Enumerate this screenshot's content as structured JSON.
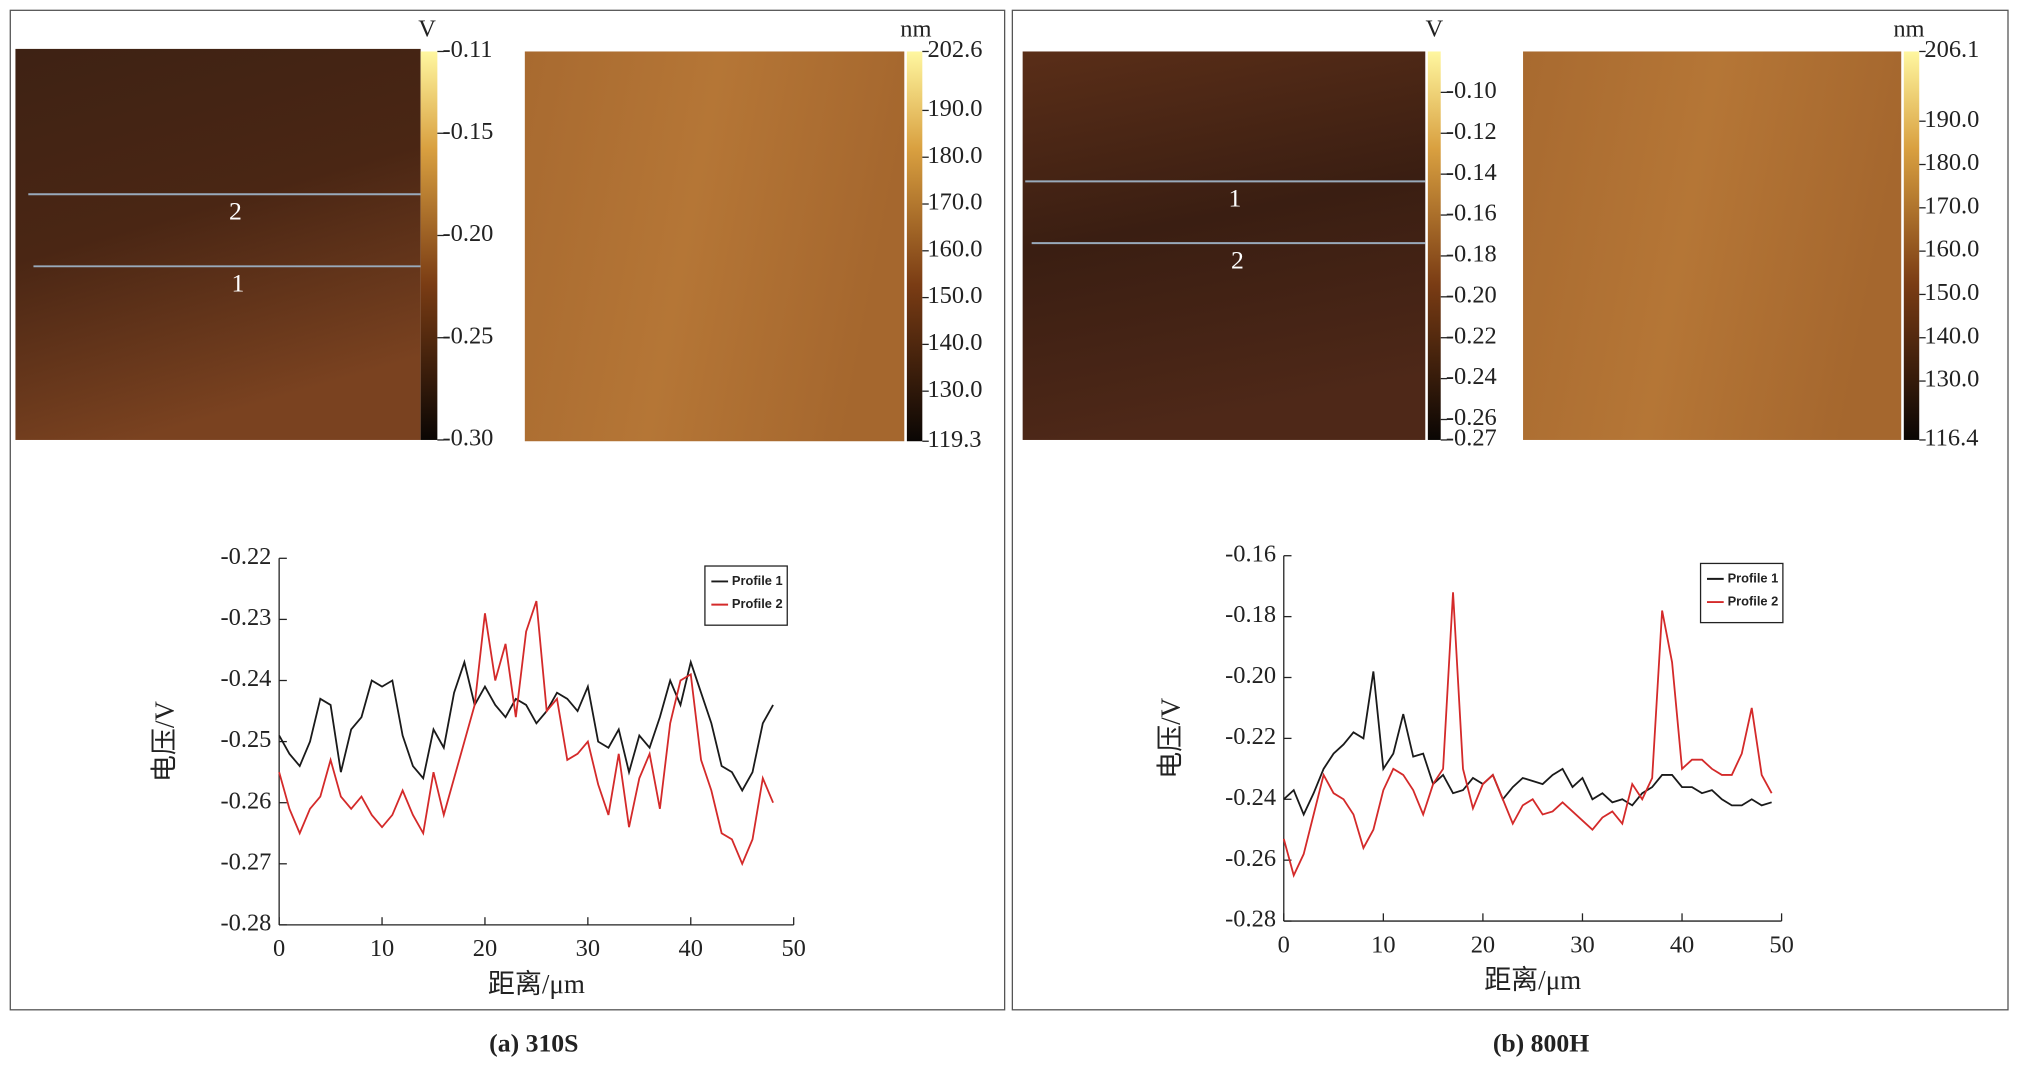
{
  "panels": [
    {
      "caption": "(a) 310S",
      "profile_labels": [
        "2",
        "1"
      ]
    },
    {
      "caption": "(b) 800H",
      "profile_labels": [
        "1",
        "2"
      ]
    }
  ],
  "chart_data": [
    {
      "type": "colorbar",
      "label": "V",
      "ylim": [
        -0.3,
        -0.11
      ],
      "yticks": [
        -0.11,
        -0.15,
        {
          "value": -0.2,
          "label": "-0.20"
        },
        -0.25,
        {
          "value": -0.3,
          "label": "-0.30"
        }
      ]
    },
    {
      "type": "colorbar",
      "label": "nm",
      "ylim": [
        119.3,
        202.6
      ],
      "yticks": [
        202.6,
        {
          "value": 190,
          "label": "190.0"
        },
        {
          "value": 180,
          "label": "180.0"
        },
        {
          "value": 170,
          "label": "170.0"
        },
        {
          "value": 160,
          "label": "160.0"
        },
        {
          "value": 150,
          "label": "150.0"
        },
        {
          "value": 140,
          "label": "140.0"
        },
        {
          "value": 130,
          "label": "130.0"
        },
        119.3
      ]
    },
    {
      "type": "line",
      "xlabel": "距离/μm",
      "ylabel": "电压/V",
      "legend": "upper right",
      "xlim": [
        0,
        50
      ],
      "ylim": [
        -0.28,
        -0.22
      ],
      "xticks": [
        0,
        10,
        20,
        30,
        40,
        50
      ],
      "yticks": [
        -0.22,
        -0.23,
        -0.24,
        -0.25,
        -0.26,
        -0.27,
        -0.28
      ],
      "x": [
        0,
        1,
        2,
        3,
        4,
        5,
        6,
        7,
        8,
        9,
        10,
        11,
        12,
        13,
        14,
        15,
        16,
        17,
        18,
        19,
        20,
        21,
        22,
        23,
        24,
        25,
        26,
        27,
        28,
        29,
        30,
        31,
        32,
        33,
        34,
        35,
        36,
        37,
        38,
        39,
        40,
        41,
        42,
        43,
        44,
        45,
        46,
        47,
        48
      ],
      "series": [
        {
          "name": "Profile 1",
          "color": "#1a1a1a",
          "values": [
            -0.249,
            -0.252,
            -0.254,
            -0.25,
            -0.243,
            -0.244,
            -0.255,
            -0.248,
            -0.246,
            -0.24,
            -0.241,
            -0.24,
            -0.249,
            -0.254,
            -0.256,
            -0.248,
            -0.251,
            -0.242,
            -0.237,
            -0.244,
            -0.241,
            -0.244,
            -0.246,
            -0.243,
            -0.244,
            -0.247,
            -0.245,
            -0.242,
            -0.243,
            -0.245,
            -0.241,
            -0.25,
            -0.251,
            -0.248,
            -0.255,
            -0.249,
            -0.251,
            -0.246,
            -0.24,
            -0.244,
            -0.237,
            -0.242,
            -0.247,
            -0.254,
            -0.255,
            -0.258,
            -0.255,
            -0.247,
            -0.244
          ]
        },
        {
          "name": "Profile 2",
          "color": "#d42a2a",
          "values": [
            -0.255,
            -0.261,
            -0.265,
            -0.261,
            -0.259,
            -0.253,
            -0.259,
            -0.261,
            -0.259,
            -0.262,
            -0.264,
            -0.262,
            -0.258,
            -0.262,
            -0.265,
            -0.255,
            -0.262,
            -0.256,
            -0.25,
            -0.244,
            -0.229,
            -0.24,
            -0.234,
            -0.246,
            -0.232,
            -0.227,
            -0.245,
            -0.243,
            -0.253,
            -0.252,
            -0.25,
            -0.257,
            -0.262,
            -0.252,
            -0.264,
            -0.256,
            -0.252,
            -0.261,
            -0.247,
            -0.24,
            -0.239,
            -0.253,
            -0.258,
            -0.265,
            -0.266,
            -0.27,
            -0.266,
            -0.256,
            -0.26
          ]
        }
      ]
    },
    {
      "type": "colorbar",
      "label": "V",
      "ylim": [
        -0.27,
        -0.08
      ],
      "yticks": [
        {
          "value": -0.1,
          "label": "-0.10"
        },
        -0.12,
        -0.14,
        -0.16,
        -0.18,
        {
          "value": -0.2,
          "label": "-0.20"
        },
        -0.22,
        -0.24,
        -0.26,
        -0.27
      ]
    },
    {
      "type": "colorbar",
      "label": "nm",
      "ylim": [
        116.4,
        206.1
      ],
      "yticks": [
        206.1,
        {
          "value": 190,
          "label": "190.0"
        },
        {
          "value": 180,
          "label": "180.0"
        },
        {
          "value": 170,
          "label": "170.0"
        },
        {
          "value": 160,
          "label": "160.0"
        },
        {
          "value": 150,
          "label": "150.0"
        },
        {
          "value": 140,
          "label": "140.0"
        },
        {
          "value": 130,
          "label": "130.0"
        },
        116.4
      ]
    },
    {
      "type": "line",
      "xlabel": "距离/μm",
      "ylabel": "电压/V",
      "legend": "upper right",
      "xlim": [
        0,
        50
      ],
      "ylim": [
        -0.28,
        -0.16
      ],
      "xticks": [
        0,
        10,
        20,
        30,
        40,
        50
      ],
      "yticks": [
        -0.16,
        -0.18,
        {
          "value": -0.2,
          "label": "-0.20"
        },
        -0.22,
        -0.24,
        -0.26,
        -0.28
      ],
      "x": [
        0,
        1,
        2,
        3,
        4,
        5,
        6,
        7,
        8,
        9,
        10,
        11,
        12,
        13,
        14,
        15,
        16,
        17,
        18,
        19,
        20,
        21,
        22,
        23,
        24,
        25,
        26,
        27,
        28,
        29,
        30,
        31,
        32,
        33,
        34,
        35,
        36,
        37,
        38,
        39,
        40,
        41,
        42,
        43,
        44,
        45,
        46,
        47,
        48,
        49
      ],
      "series": [
        {
          "name": "Profile 1",
          "color": "#1a1a1a",
          "values": [
            -0.24,
            -0.237,
            -0.245,
            -0.238,
            -0.23,
            -0.225,
            -0.222,
            -0.218,
            -0.22,
            -0.198,
            -0.23,
            -0.225,
            -0.212,
            -0.226,
            -0.225,
            -0.235,
            -0.232,
            -0.238,
            -0.237,
            -0.233,
            -0.235,
            -0.232,
            -0.24,
            -0.236,
            -0.233,
            -0.234,
            -0.235,
            -0.232,
            -0.23,
            -0.236,
            -0.233,
            -0.24,
            -0.238,
            -0.241,
            -0.24,
            -0.242,
            -0.238,
            -0.236,
            -0.232,
            -0.232,
            -0.236,
            -0.236,
            -0.238,
            -0.237,
            -0.24,
            -0.242,
            -0.242,
            -0.24,
            -0.242,
            -0.241
          ]
        },
        {
          "name": "Profile 2",
          "color": "#d42a2a",
          "values": [
            -0.253,
            -0.265,
            -0.258,
            -0.245,
            -0.232,
            -0.238,
            -0.24,
            -0.245,
            -0.256,
            -0.25,
            -0.237,
            -0.23,
            -0.232,
            -0.237,
            -0.245,
            -0.235,
            -0.23,
            -0.172,
            -0.23,
            -0.243,
            -0.235,
            -0.232,
            -0.24,
            -0.248,
            -0.242,
            -0.24,
            -0.245,
            -0.244,
            -0.241,
            -0.244,
            -0.247,
            -0.25,
            -0.246,
            -0.244,
            -0.248,
            -0.235,
            -0.24,
            -0.233,
            -0.178,
            -0.195,
            -0.23,
            -0.227,
            -0.227,
            -0.23,
            -0.232,
            -0.232,
            -0.225,
            -0.21,
            -0.232,
            -0.238
          ]
        }
      ]
    }
  ]
}
